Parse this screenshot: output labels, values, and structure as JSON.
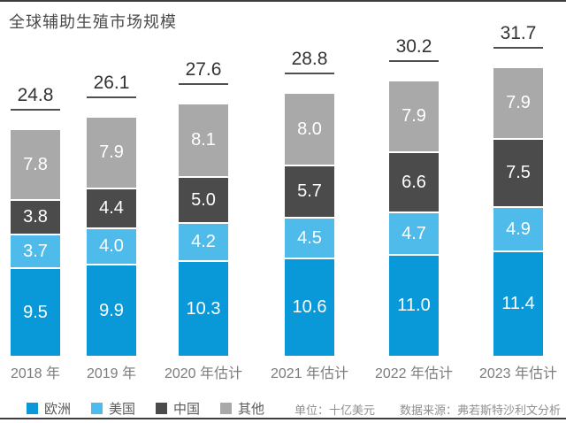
{
  "page": {
    "title": "全球辅助生殖市场规模",
    "unit_note": "单位：十亿美元",
    "source_note": "数据来源：弗若斯特沙利文分析"
  },
  "colors": {
    "europe": "#0999d8",
    "us": "#4fbbeb",
    "china": "#4b4b4b",
    "other": "#a9a9a9",
    "total_underline": "#4f4f4f",
    "edge_line": "#3d3d3d"
  },
  "chart_data": {
    "type": "bar",
    "stacked": true,
    "title": "全球辅助生殖市场规模",
    "unit": "十亿美元",
    "legend_position": "bottom",
    "grid": false,
    "categories": [
      "2018 年",
      "2019 年",
      "2020 年估计",
      "2021 年估计",
      "2022 年估计",
      "2023 年估计"
    ],
    "totals": [
      24.8,
      26.1,
      27.6,
      28.8,
      30.2,
      31.7
    ],
    "series": [
      {
        "key": "europe",
        "name": "欧洲",
        "color": "#0999d8",
        "values": [
          9.5,
          9.9,
          10.3,
          10.6,
          11.0,
          11.4
        ]
      },
      {
        "key": "us",
        "name": "美国",
        "color": "#4fbbeb",
        "values": [
          3.7,
          4.0,
          4.2,
          4.5,
          4.7,
          4.9
        ]
      },
      {
        "key": "china",
        "name": "中国",
        "color": "#4b4b4b",
        "values": [
          3.8,
          4.4,
          5.0,
          5.7,
          6.6,
          7.5
        ]
      },
      {
        "key": "other",
        "name": "其他",
        "color": "#a9a9a9",
        "values": [
          7.8,
          7.9,
          8.1,
          8.0,
          7.9,
          7.9
        ]
      }
    ]
  }
}
